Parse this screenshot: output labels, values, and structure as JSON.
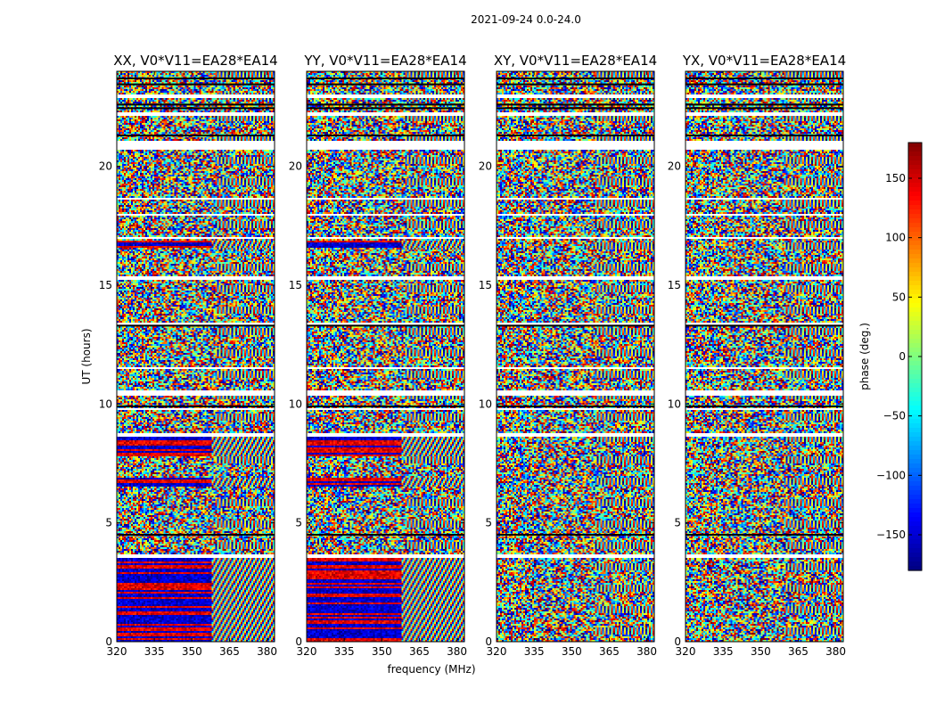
{
  "chart_data": {
    "type": "heatmap",
    "suptitle": "2021-09-24 0.0-24.0",
    "xlabel": "frequency (MHz)",
    "ylabel": "UT (hours)",
    "xlim": [
      320,
      383
    ],
    "ylim": [
      0,
      24
    ],
    "xticks": [
      320,
      335,
      350,
      365,
      380
    ],
    "yticks": [
      0,
      5,
      10,
      15,
      20
    ],
    "panels": [
      {
        "title": "XX, V0*V11=EA28*EA14",
        "product": "XX",
        "coherent_bands": [
          [
            0.0,
            3.6
          ],
          [
            6.5,
            6.9
          ],
          [
            7.8,
            8.6
          ],
          [
            16.6,
            16.9
          ]
        ]
      },
      {
        "title": "YY, V0*V11=EA28*EA14",
        "product": "YY",
        "coherent_bands": [
          [
            0.0,
            3.6
          ],
          [
            6.5,
            6.9
          ],
          [
            7.8,
            8.6
          ],
          [
            16.6,
            16.9
          ]
        ]
      },
      {
        "title": "XY, V0*V11=EA28*EA14",
        "product": "XY",
        "coherent_bands": []
      },
      {
        "title": "YX, V0*V11=EA28*EA14",
        "product": "YX",
        "coherent_bands": []
      }
    ],
    "flagged_bands": [
      [
        3.55,
        3.7
      ],
      [
        4.55,
        4.6
      ],
      [
        8.65,
        8.75
      ],
      [
        9.75,
        9.85
      ],
      [
        10.35,
        10.55
      ],
      [
        11.45,
        11.55
      ],
      [
        13.25,
        13.4
      ],
      [
        15.2,
        15.35
      ],
      [
        16.95,
        17.05
      ],
      [
        17.9,
        18.0
      ],
      [
        18.6,
        18.7
      ],
      [
        20.7,
        21.1
      ],
      [
        22.1,
        22.25
      ],
      [
        22.9,
        23.0
      ]
    ],
    "colorbar": {
      "label": "phase (deg.)",
      "range": [
        -180,
        180
      ],
      "ticks": [
        -150,
        -100,
        -50,
        0,
        50,
        100,
        150
      ],
      "ticklabels": [
        "−150",
        "−100",
        "−50",
        "0",
        "50",
        "100",
        "150"
      ],
      "colormap": "jet"
    }
  }
}
